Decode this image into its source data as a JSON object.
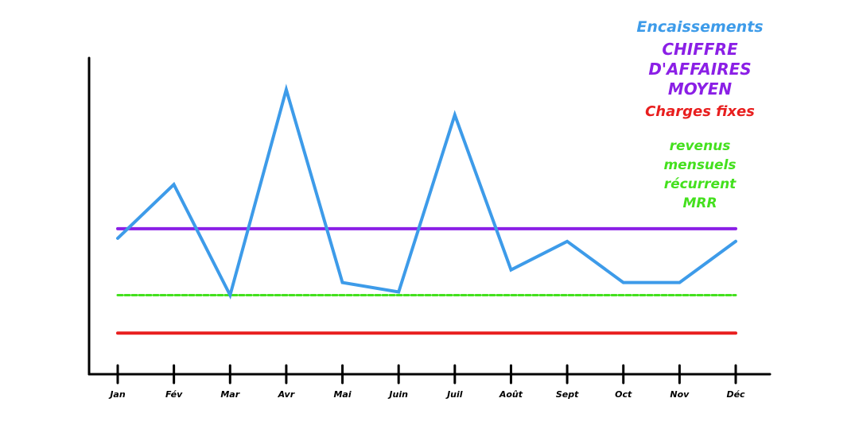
{
  "chart_data": {
    "type": "line",
    "categories": [
      "Jan",
      "Fév",
      "Mar",
      "Avr",
      "Mai",
      "Juin",
      "Juil",
      "Août",
      "Sept",
      "Oct",
      "Nov",
      "Déc"
    ],
    "ylim": [
      0,
      100
    ],
    "grid": false,
    "legend_position": "top-right",
    "series": [
      {
        "name": "Encaissements",
        "color": "#3d9be9",
        "style": "solid",
        "values": [
          43,
          60,
          25,
          90,
          29,
          26,
          82,
          33,
          42,
          29,
          29,
          42
        ]
      },
      {
        "name": "CHIFFRE D'AFFAIRES MOYEN",
        "color": "#8b1fe6",
        "style": "solid",
        "values": [
          46,
          46,
          46,
          46,
          46,
          46,
          46,
          46,
          46,
          46,
          46,
          46
        ]
      },
      {
        "name": "Charges fixes",
        "color": "#e81e1e",
        "style": "solid",
        "values": [
          13,
          13,
          13,
          13,
          13,
          13,
          13,
          13,
          13,
          13,
          13,
          13
        ]
      },
      {
        "name": "revenus mensuels récurrent MRR",
        "color": "#44e01e",
        "style": "dashed",
        "values": [
          25,
          25,
          25,
          25,
          25,
          25,
          25,
          25,
          25,
          25,
          25,
          25
        ]
      }
    ],
    "legend": [
      {
        "lines": [
          "Encaissements"
        ],
        "color": "#3d9be9"
      },
      {
        "lines": [
          "CHIFFRE",
          "D'AFFAIRES",
          "MOYEN"
        ],
        "color": "#8b1fe6"
      },
      {
        "lines": [
          "Charges fixes"
        ],
        "color": "#e81e1e"
      },
      {
        "lines": [
          "revenus",
          "mensuels",
          "récurrent",
          "MRR"
        ],
        "color": "#44e01e"
      }
    ]
  }
}
